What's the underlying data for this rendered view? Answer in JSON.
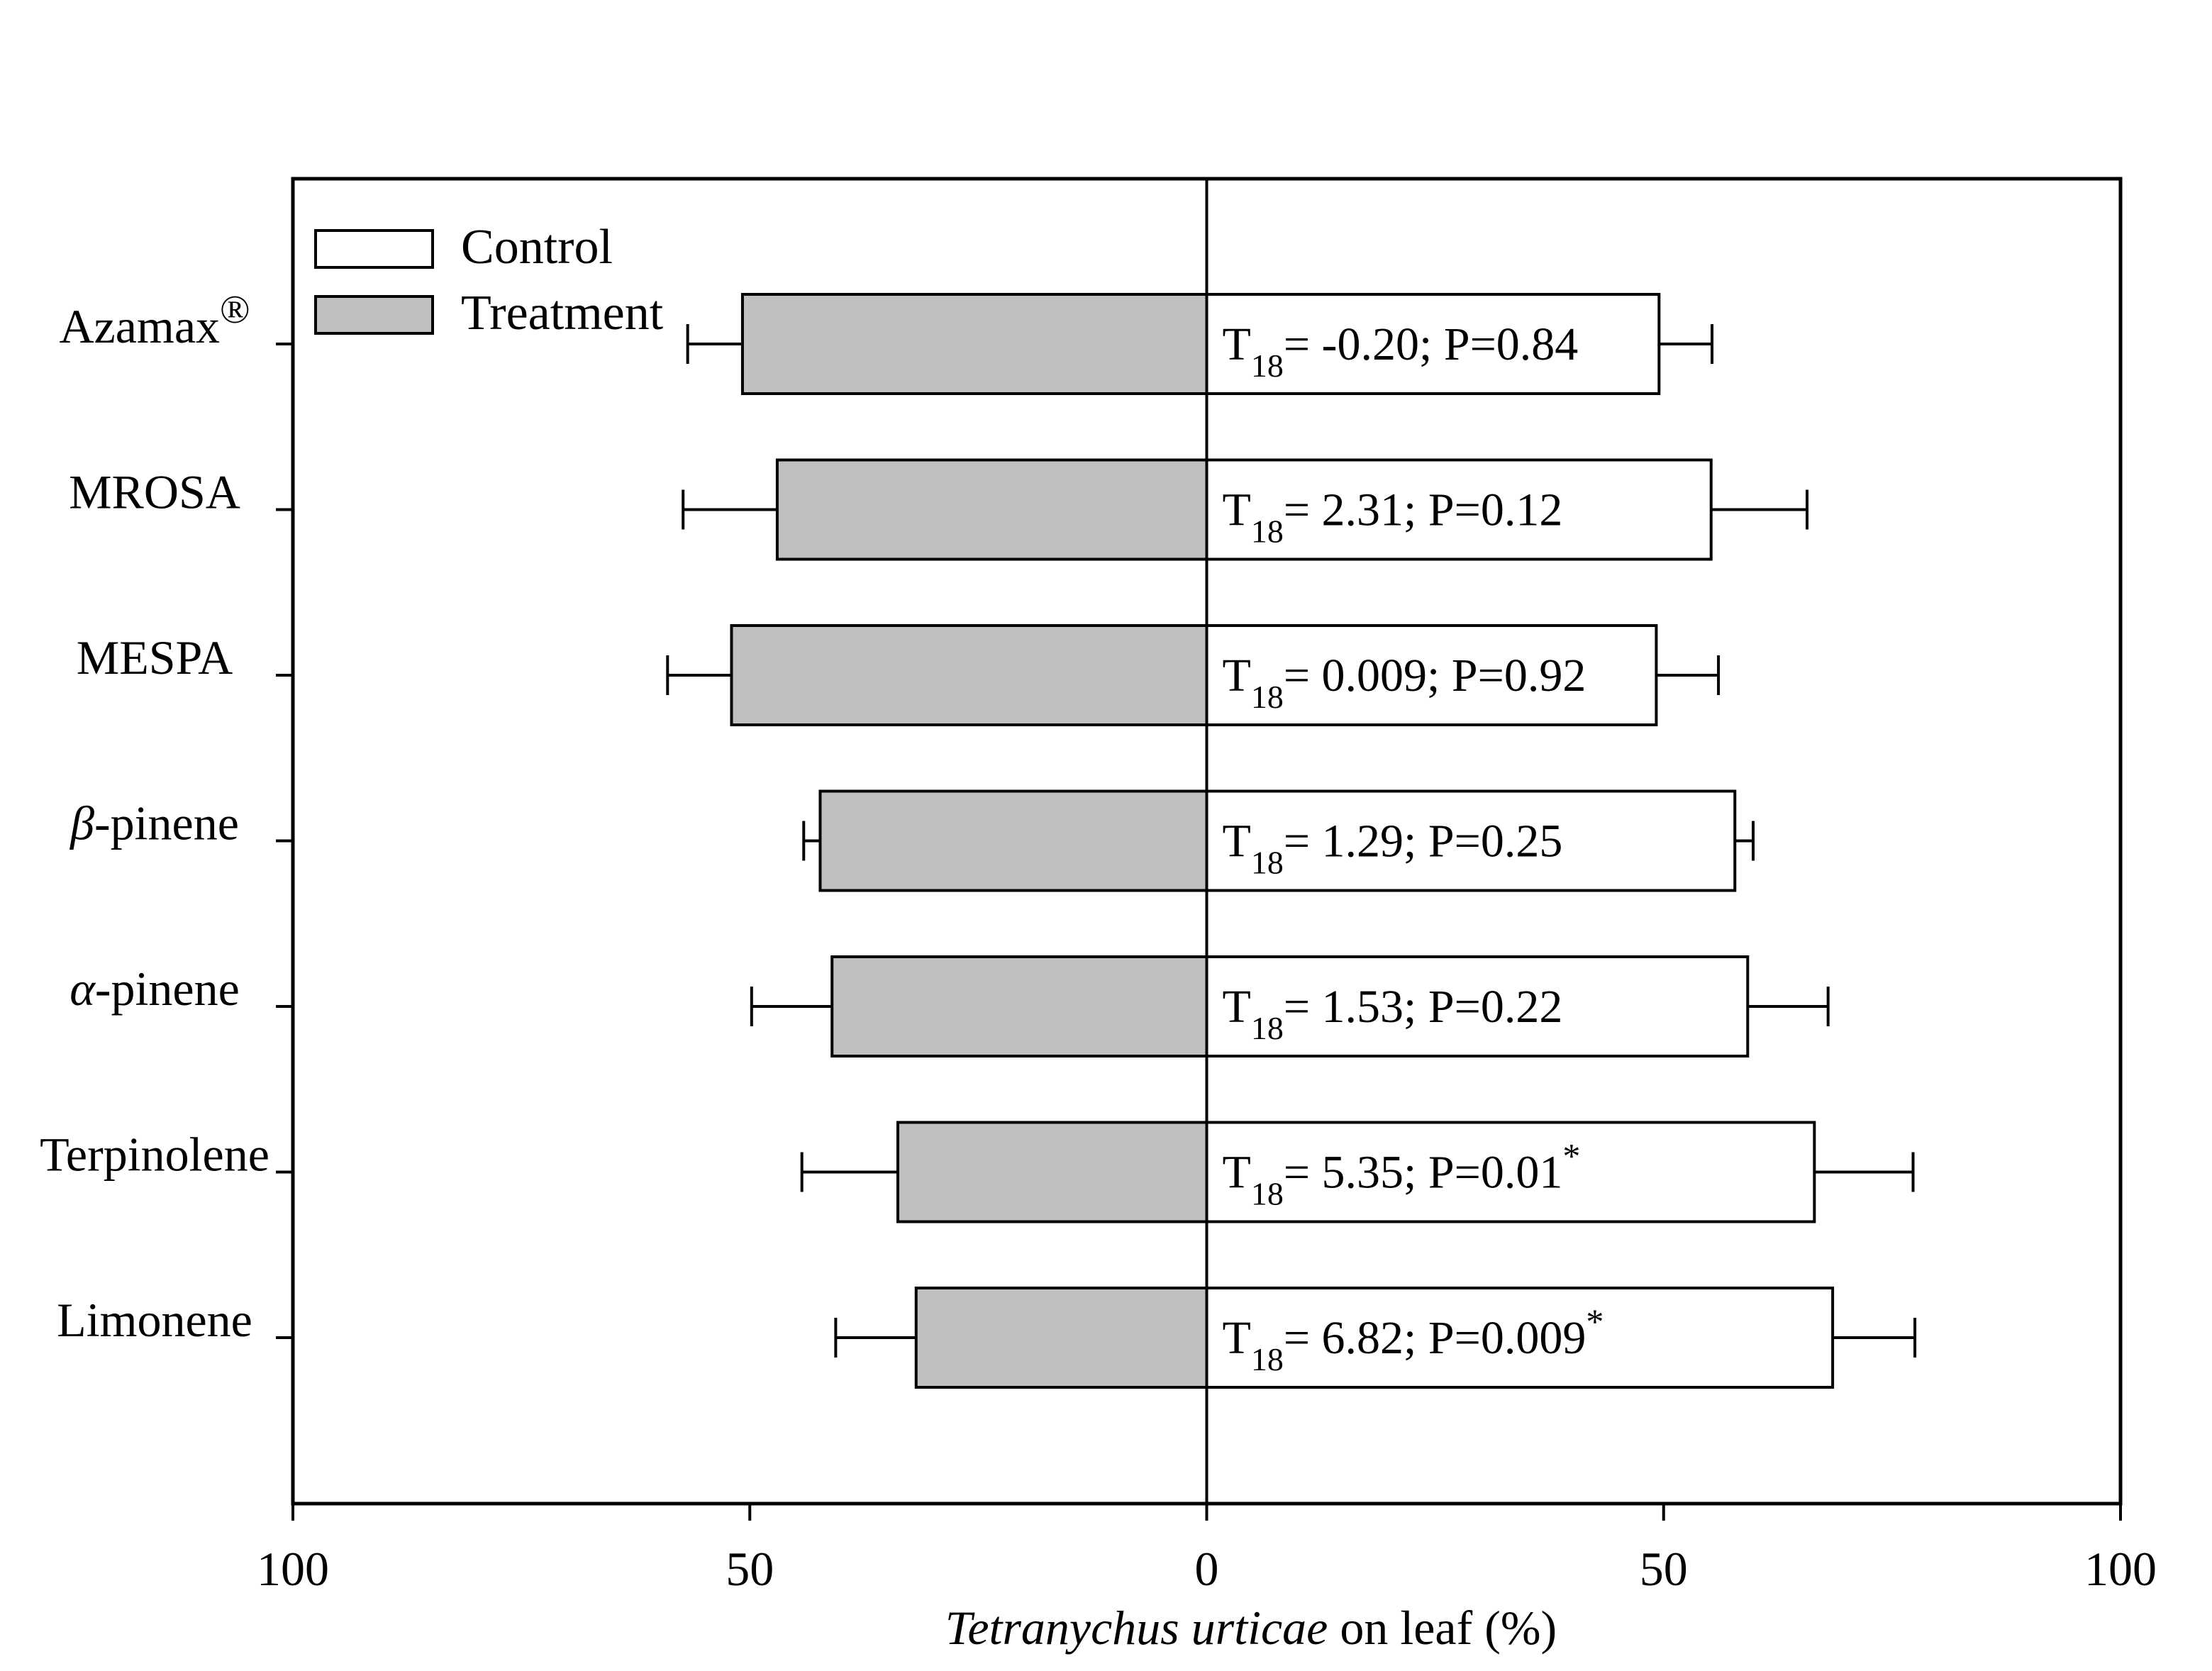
{
  "chart_data": {
    "type": "bar",
    "orientation": "horizontal-diverging",
    "categories": [
      "Azamax®",
      "MROSA",
      "MESPA",
      "β-pinene",
      "α-pinene",
      "Terpinolene",
      "Limonene"
    ],
    "series": [
      {
        "name": "Control",
        "side": "right",
        "color": "#ffffff",
        "values": [
          49.5,
          55.2,
          49.2,
          57.8,
          59.2,
          66.5,
          68.5
        ],
        "error": [
          5.8,
          10.5,
          6.8,
          2.0,
          8.8,
          10.8,
          9.0
        ]
      },
      {
        "name": "Treatment",
        "side": "left",
        "color": "#c0c0c0",
        "values": [
          50.8,
          47.0,
          52.0,
          42.3,
          41.0,
          33.8,
          31.8
        ],
        "error": [
          6.0,
          10.3,
          7.0,
          1.8,
          8.8,
          10.5,
          8.8
        ]
      }
    ],
    "stats": [
      {
        "label": "T",
        "sub": "18",
        "text": "= -0.20; P=0.84",
        "star": ""
      },
      {
        "label": "T",
        "sub": "18",
        "text": "= 2.31; P=0.12",
        "star": ""
      },
      {
        "label": "T",
        "sub": "18",
        "text": "= 0.009; P=0.92",
        "star": ""
      },
      {
        "label": "T",
        "sub": "18",
        "text": "= 1.29; P=0.25",
        "star": ""
      },
      {
        "label": "T",
        "sub": "18",
        "text": "= 1.53; P=0.22",
        "star": ""
      },
      {
        "label": "T",
        "sub": "18",
        "text": "= 5.35; P=0.01",
        "star": "*"
      },
      {
        "label": "T",
        "sub": "18",
        "text": "= 6.82; P=0.009",
        "star": "*"
      }
    ],
    "xlim": [
      -100,
      100
    ],
    "xticks": [
      -100,
      -50,
      0,
      50,
      100
    ],
    "xtick_labels": [
      "100",
      "50",
      "0",
      "50",
      "100"
    ],
    "xlabel_italic": "Tetranychus urticae",
    "xlabel_rest": " on leaf (%)",
    "legend": {
      "placement": "top-left",
      "entries": [
        "Control",
        "Treatment"
      ]
    },
    "grid": false
  }
}
